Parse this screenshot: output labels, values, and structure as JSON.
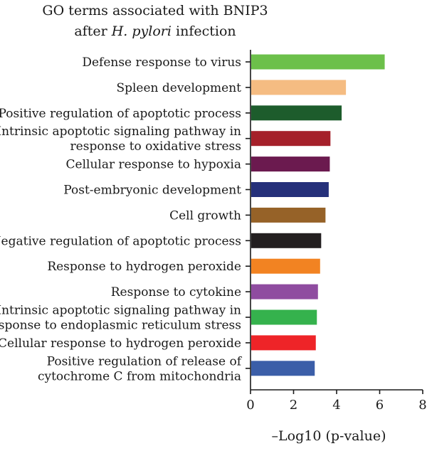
{
  "chart_data": {
    "type": "bar",
    "orientation": "horizontal",
    "title_line1": "GO terms associated with BNIP3",
    "title_line2_prefix": "after ",
    "title_line2_italic": "H. pylori",
    "title_line2_suffix": " infection",
    "xlabel": "–Log10 (p-value)",
    "xlim": [
      0,
      8
    ],
    "xticks": [
      0,
      2,
      4,
      6,
      8
    ],
    "grid": false,
    "categories": [
      [
        "Defense response to virus"
      ],
      [
        "Spleen development"
      ],
      [
        "Positive regulation of apoptotic process"
      ],
      [
        "Intrinsic apoptotic signaling pathway in",
        "response to oxidative stress"
      ],
      [
        "Cellular response to hypoxia"
      ],
      [
        "Post-embryonic development"
      ],
      [
        "Cell growth"
      ],
      [
        "Negative regulation of apoptotic process"
      ],
      [
        "Response to hydrogen peroxide"
      ],
      [
        "Response to cytokine"
      ],
      [
        "Intrinsic apoptotic signaling pathway in",
        "response to endoplasmic reticulum stress"
      ],
      [
        "Cellular response to hydrogen peroxide"
      ],
      [
        "Positive regulation of release of",
        "cytochrome C from mitochondria"
      ]
    ],
    "values": [
      6.2,
      4.4,
      4.2,
      3.68,
      3.65,
      3.6,
      3.45,
      3.25,
      3.2,
      3.1,
      3.05,
      3.0,
      2.95
    ],
    "colors": [
      "#6cc04a",
      "#f5bc82",
      "#1d5c2c",
      "#a5202a",
      "#6b1a4f",
      "#25307a",
      "#966228",
      "#231f20",
      "#f28322",
      "#8f4ca0",
      "#35b24d",
      "#ee2428",
      "#3b5ea8"
    ]
  }
}
